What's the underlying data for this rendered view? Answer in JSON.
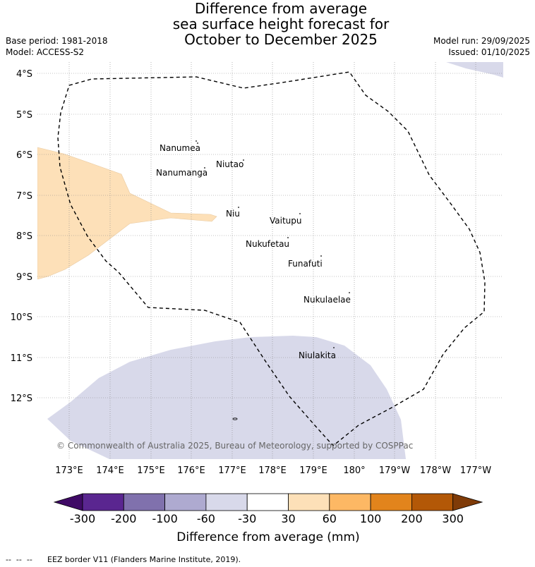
{
  "title": {
    "line1": "Difference from average",
    "line2": "sea surface height forecast for",
    "line3": "October to December 2025"
  },
  "meta": {
    "base_period": "Base period: 1981-2018",
    "model": "Model: ACCESS-S2",
    "model_run": "Model run: 29/09/2025",
    "issued": "Issued: 01/10/2025"
  },
  "map": {
    "latitude_labels": [
      "4°S",
      "5°S",
      "6°S",
      "7°S",
      "8°S",
      "9°S",
      "10°S",
      "11°S",
      "12°S"
    ],
    "longitude_labels": [
      "173°E",
      "174°E",
      "175°E",
      "176°E",
      "177°E",
      "178°E",
      "179°E",
      "180°",
      "179°W",
      "178°W",
      "177°W"
    ],
    "islands": [
      {
        "name": "Nanumea"
      },
      {
        "name": "Nanumanga"
      },
      {
        "name": "Niutao"
      },
      {
        "name": "Niu"
      },
      {
        "name": "Vaitupu"
      },
      {
        "name": "Nukufetau"
      },
      {
        "name": "Funafuti"
      },
      {
        "name": "Nukulaelae"
      },
      {
        "name": "Niulakita"
      }
    ],
    "copyright": "© Commonwealth of Australia 2025, Bureau of Meteorology, supported by COSPPac",
    "colors": {
      "positive_30_60": "#fde0b8",
      "negative_60_30": "#d8d9ea",
      "eez_border": "#000000",
      "grid": "#888888"
    }
  },
  "colorbar": {
    "ticks": [
      "-300",
      "-200",
      "-100",
      "-60",
      "-30",
      "30",
      "60",
      "100",
      "200",
      "300"
    ],
    "colors": [
      "#3f0a66",
      "#5a2690",
      "#8071ad",
      "#aeaad0",
      "#d8d9ea",
      "#ffffff",
      "#fde0b8",
      "#fdb864",
      "#e2841c",
      "#b35807",
      "#7f3b08"
    ],
    "label": "Difference from average (mm)"
  },
  "footer": {
    "legend_symbol": "--  --  --",
    "legend_text": "EEZ border V11 (Flanders Marine Institute, 2019)."
  }
}
